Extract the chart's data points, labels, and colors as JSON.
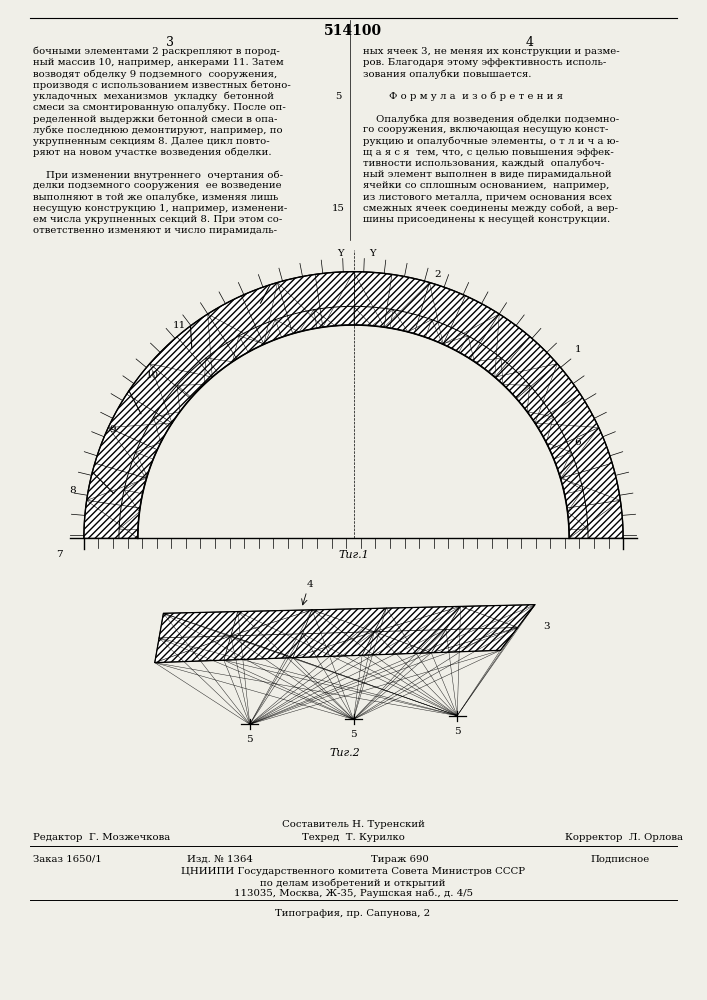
{
  "page_color": "#f0efe8",
  "patent_number": "514100",
  "text_col1": [
    "бочными элементами 2 раскрепляют в пород-",
    "ный массив 10, например, анкерами 11. Затем",
    "возводят обделку 9 подземного  сооружения,",
    "производя с использованием известных бетоно-",
    "укладочных  механизмов  укладку  бетонной",
    "смеси за смонтированную опалубку. После оп-",
    "ределенной выдержки бетонной смеси в опа-",
    "лубке последнюю демонтируют, например, по",
    "укрупненным секциям 8. Далее цикл повто-",
    "ряют на новом участке возведения обделки.",
    "",
    "    При изменении внутреннего  очертания об-",
    "делки подземного сооружения  ее возведение",
    "выполняют в той же опалубке, изменяя лишь",
    "несущую конструкцию 1, например, изменени-",
    "ем числа укрупненных секций 8. При этом со-",
    "ответственно изменяют и число пирамидаль-"
  ],
  "text_col2": [
    "ных ячеек 3, не меняя их конструкции и разме-",
    "ров. Благодаря этому эффективность исполь-",
    "зования опалубки повышается.",
    "",
    "        Ф о р м у л а  и з о б р е т е н и я",
    "",
    "    Опалубка для возведения обделки подземно-",
    "го сооружения, включающая несущую конст-",
    "рукцию и опалубочные элементы, о т л и ч а ю-",
    "щ а я с я  тем, что, с целью повышения эффек-",
    "тивности использования, каждый  опалубоч-",
    "ный элемент выполнен в виде пирамидальной",
    "ячейки со сплошным основанием,  например,",
    "из листового металла, причем основания всех",
    "смежных ячеек соединены между собой, а вер-",
    "шины присоединены к несущей конструкции."
  ],
  "fig1_caption": "Τиг.1",
  "fig2_caption": "Τиг.2",
  "footer_composer": "Составитель Н. Туренский",
  "footer_editor": "Редактор  Г. Мозжечкова",
  "footer_tech": "Техред  Т. Курилко",
  "footer_corrector": "Корректор  Л. Орлова",
  "footer_order": "Заказ 1650/1",
  "footer_izd": "Изд. № 1364",
  "footer_tirazh": "Тираж 690",
  "footer_podpis": "Подписное",
  "footer_cniipи": "ЦНИИПИ Государственного комитета Совета Министров СССР",
  "footer_po": "по делам изобретений и открытий",
  "footer_addr": "113035, Москва, Ж-35, Раушская наб., д. 4/5",
  "footer_tip": "Типография, пр. Сапунова, 2"
}
